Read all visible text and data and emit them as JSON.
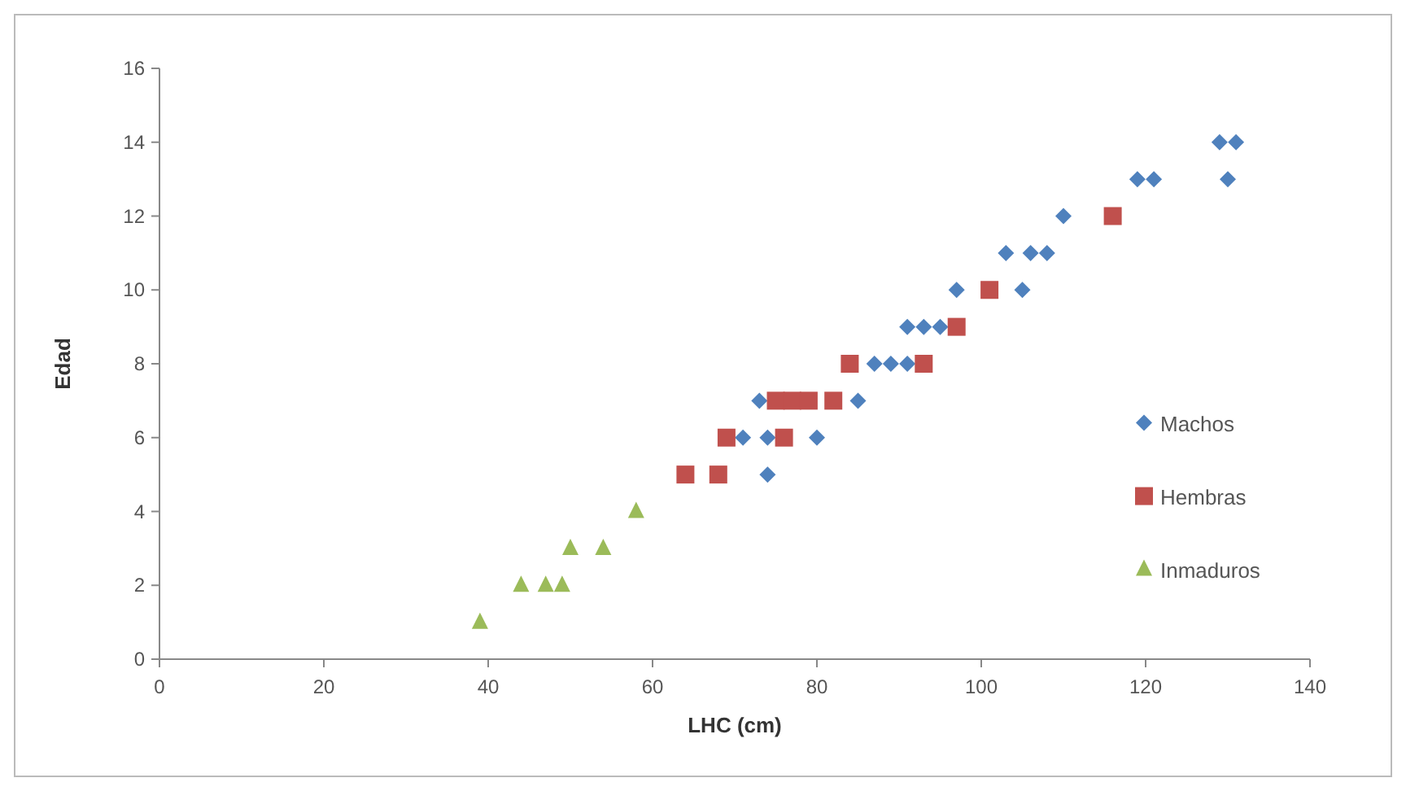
{
  "chart_data": {
    "type": "scatter",
    "xlabel": "LHC (cm)",
    "ylabel": "Edad",
    "xlim": [
      0,
      140
    ],
    "xticks": [
      0,
      20,
      40,
      60,
      80,
      100,
      120,
      140
    ],
    "ylim": [
      0,
      16
    ],
    "yticks": [
      0,
      2,
      4,
      6,
      8,
      10,
      12,
      14,
      16
    ],
    "grid": false,
    "legend": "right",
    "series": [
      {
        "name": "Machos",
        "color": "#4f81bd",
        "marker": "diamond",
        "x": [
          74,
          71,
          74,
          80,
          73,
          85,
          87,
          89,
          91,
          91,
          93,
          95,
          97,
          105,
          103,
          106,
          108,
          110,
          119,
          121,
          130,
          129,
          131
        ],
        "values": [
          5,
          6,
          6,
          6,
          7,
          7,
          8,
          8,
          8,
          9,
          9,
          9,
          10,
          10,
          11,
          11,
          11,
          12,
          13,
          13,
          13,
          14,
          14
        ]
      },
      {
        "name": "Hembras",
        "color": "#c0504d",
        "marker": "square",
        "x": [
          64,
          68,
          69,
          76,
          75,
          77,
          79,
          82,
          84,
          93,
          97,
          101,
          116
        ],
        "values": [
          5,
          5,
          6,
          6,
          7,
          7,
          7,
          7,
          8,
          8,
          9,
          10,
          12
        ]
      },
      {
        "name": "Inmaduros",
        "color": "#9bbb59",
        "marker": "triangle",
        "x": [
          39,
          44,
          47,
          49,
          50,
          54,
          58
        ],
        "values": [
          1,
          2,
          2,
          2,
          3,
          3,
          4
        ]
      }
    ]
  }
}
